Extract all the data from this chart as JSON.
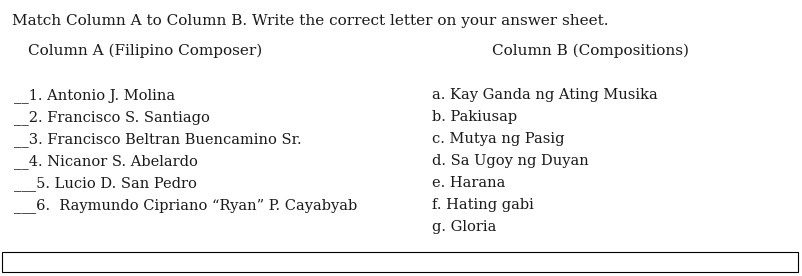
{
  "instruction": "Match Column A to Column B. Write the correct letter on your answer sheet.",
  "col_a_header": "Column A (Filipino Composer)",
  "col_b_header": "Column B (Compositions)",
  "col_a_items": [
    "__1. Antonio J. Molina",
    "__2. Francisco S. Santiago",
    "__3. Francisco Beltran Buencamino Sr.",
    "__4. Nicanor S. Abelardo",
    "___5. Lucio D. San Pedro",
    "___6.  Raymundo Cipriano “Ryan” P. Cayabyab"
  ],
  "col_b_items": [
    "a. Kay Ganda ng Ating Musika",
    "b. Pakiusap",
    "c. Mutya ng Pasig",
    "d. Sa Ugoy ng Duyan",
    "e. Harana",
    "f. Hating gabi",
    "g. Gloria"
  ],
  "bg_color": "#ffffff",
  "text_color": "#1a1a1a",
  "font_size": 10.5,
  "header_font_size": 11,
  "instruction_font_size": 11,
  "border_color": "#000000"
}
